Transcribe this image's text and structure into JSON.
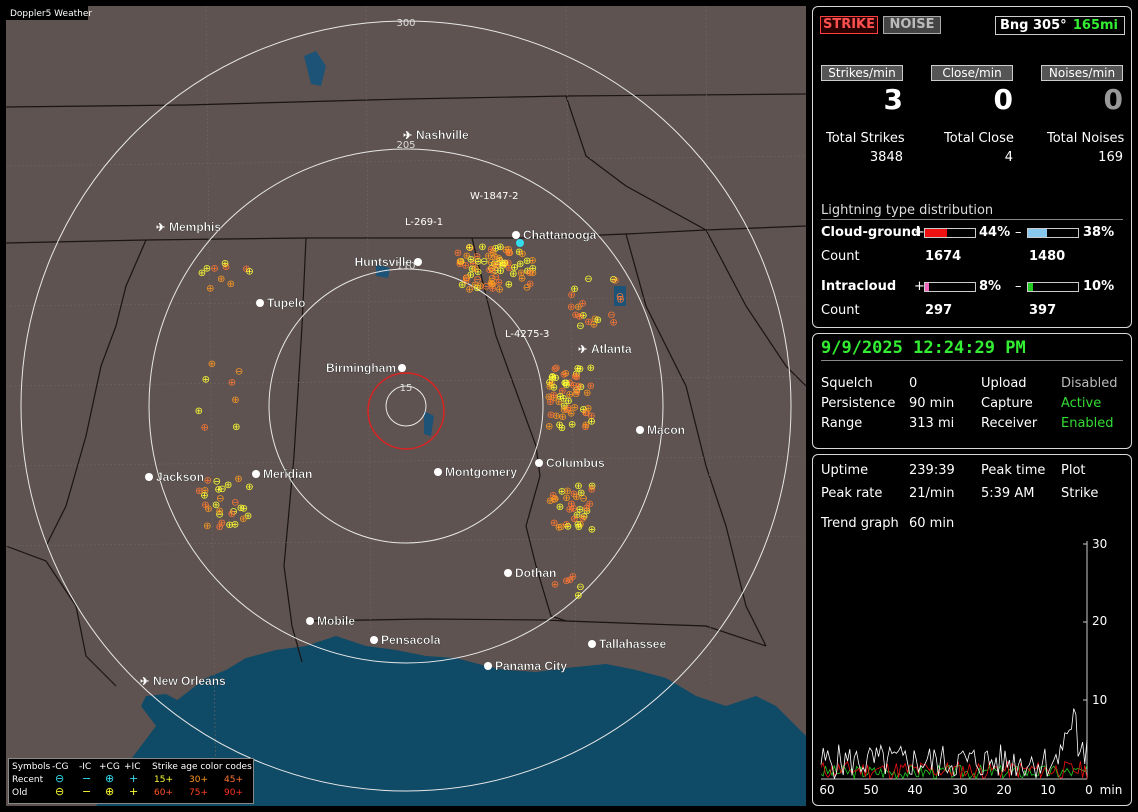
{
  "app_title": "Doppler5 Weather",
  "map": {
    "range_labels": [
      "300",
      "205",
      "110",
      "15"
    ],
    "cities": [
      {
        "name": "Nashville",
        "airport": true
      },
      {
        "name": "Memphis",
        "airport": true
      },
      {
        "name": "Chattanooga",
        "airport": false
      },
      {
        "name": "Huntsville",
        "airport": false
      },
      {
        "name": "Tupelo",
        "airport": false
      },
      {
        "name": "Atlanta",
        "airport": true
      },
      {
        "name": "Birmingham",
        "airport": false
      },
      {
        "name": "Macon",
        "airport": false
      },
      {
        "name": "Jackson",
        "airport": false
      },
      {
        "name": "Meridian",
        "airport": false
      },
      {
        "name": "Montgomery",
        "airport": false
      },
      {
        "name": "Columbus",
        "airport": false
      },
      {
        "name": "Dothan",
        "airport": false
      },
      {
        "name": "Mobile",
        "airport": false
      },
      {
        "name": "Pensacola",
        "airport": false
      },
      {
        "name": "Tallahassee",
        "airport": false
      },
      {
        "name": "Panama City",
        "airport": false
      },
      {
        "name": "New Orleans",
        "airport": true
      }
    ],
    "strike_labels": [
      "W-1847-2",
      "L-269-1",
      "L-4275-3"
    ]
  },
  "legend": {
    "row_header": "Symbols",
    "cols": [
      "-CG",
      "-IC",
      "+CG",
      "+IC"
    ],
    "age_title": "Strike age color codes",
    "recent_label": "Recent",
    "old_label": "Old",
    "recent_ages": [
      "15+",
      "30+",
      "45+"
    ],
    "old_ages": [
      "60+",
      "75+",
      "90+"
    ],
    "age_colors": [
      "#ffff33",
      "#ff9922",
      "#ff7733",
      "#ff5522",
      "#ff4422",
      "#ff3322"
    ]
  },
  "top": {
    "strike_btn": "STRIKE",
    "noise_btn": "NOISE",
    "bearing": "Bng 305°",
    "distance": "165mi"
  },
  "rates": {
    "headers": [
      "Strikes/min",
      "Close/min",
      "Noises/min"
    ],
    "values": [
      "3",
      "0",
      "0"
    ],
    "total_labels": [
      "Total Strikes",
      "Total Close",
      "Total Noises"
    ],
    "totals": [
      "3848",
      "4",
      "169"
    ]
  },
  "distribution": {
    "title": "Lightning type distribution",
    "cg_label": "Cloud-ground",
    "ic_label": "Intracloud",
    "count_label": "Count",
    "plus": "+",
    "minus": "–",
    "cg_pos_pct": "44%",
    "cg_neg_pct": "38%",
    "cg_pos_count": "1674",
    "cg_neg_count": "1480",
    "ic_pos_pct": "8%",
    "ic_neg_pct": "10%",
    "ic_pos_count": "297",
    "ic_neg_count": "397",
    "cg_pos_fill": 0.44,
    "cg_neg_fill": 0.38,
    "ic_pos_fill": 0.08,
    "ic_neg_fill": 0.1,
    "colors": {
      "cg_pos": "#ee1111",
      "cg_neg": "#88c8ee",
      "ic_pos": "#ee66bb",
      "ic_neg": "#22cc22"
    }
  },
  "status": {
    "datetime": "9/9/2025 12:24:29 PM",
    "squelch_label": "Squelch",
    "squelch": "0",
    "upload_label": "Upload",
    "upload": "Disabled",
    "persistence_label": "Persistence",
    "persistence": "90 min",
    "capture_label": "Capture",
    "capture": "Active",
    "range_label": "Range",
    "range": "313 mi",
    "receiver_label": "Receiver",
    "receiver": "Enabled"
  },
  "stats": {
    "uptime_label": "Uptime",
    "uptime": "239:39",
    "peak_time_label": "Peak time",
    "plot_label": "Plot",
    "peak_rate_label": "Peak rate",
    "peak_rate": "21/min",
    "peak_time": "5:39 AM",
    "plot": "Strike",
    "trend_label": "Trend graph",
    "trend": "60 min"
  },
  "trend_graph": {
    "x_ticks": [
      "60",
      "50",
      "40",
      "30",
      "20",
      "10",
      "0"
    ],
    "x_unit": "min",
    "y_ticks": [
      "30",
      "20",
      "10"
    ]
  }
}
